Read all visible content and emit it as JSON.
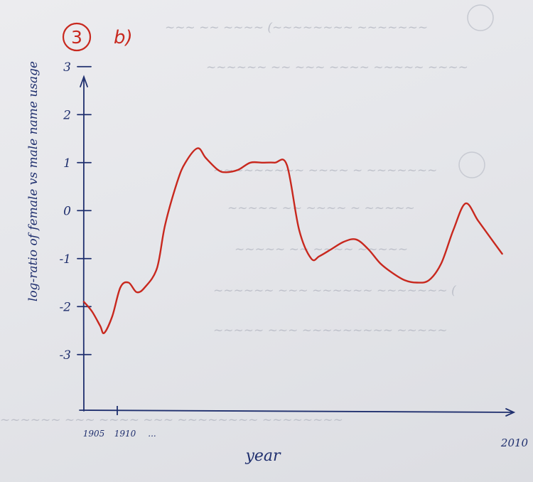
{
  "annotation": {
    "number": "3",
    "part": "b)"
  },
  "chart_data": {
    "type": "line",
    "title": "",
    "xlabel": "year",
    "ylabel": "log-ratio of female vs male name usage",
    "x_tick_labels": [
      "1905",
      "1910",
      "...",
      "2010"
    ],
    "y_ticks": [
      3,
      2,
      1,
      0,
      -1,
      -2,
      -3
    ],
    "y_tick_labels": [
      "3",
      "2",
      "1",
      "0",
      "-1",
      "-2",
      "-3"
    ],
    "xlim": [
      1905,
      2010
    ],
    "ylim": [
      -4.5,
      3.5
    ],
    "grid": false,
    "series": [
      {
        "color": "#c8281e",
        "x": [
          1905,
          1907,
          1909,
          1910,
          1912,
          1914,
          1916,
          1918,
          1920,
          1923,
          1925,
          1928,
          1930,
          1933,
          1935,
          1938,
          1940,
          1943,
          1946,
          1949,
          1952,
          1955,
          1958,
          1961,
          1963,
          1966,
          1969,
          1972,
          1975,
          1978,
          1981,
          1984,
          1987,
          1990,
          1993,
          1996,
          1999,
          2002,
          2005,
          2008
        ],
        "y": [
          -1.9,
          -2.1,
          -2.4,
          -2.55,
          -2.2,
          -1.6,
          -1.5,
          -1.7,
          -1.6,
          -1.2,
          -0.3,
          0.6,
          1.0,
          1.3,
          1.1,
          0.85,
          0.8,
          0.85,
          1.0,
          1.0,
          1.0,
          0.95,
          -0.4,
          -1.0,
          -0.95,
          -0.8,
          -0.65,
          -0.6,
          -0.8,
          -1.1,
          -1.3,
          -1.45,
          -1.5,
          -1.45,
          -1.1,
          -0.4,
          0.15,
          -0.2,
          -0.55,
          -0.9
        ]
      }
    ]
  }
}
